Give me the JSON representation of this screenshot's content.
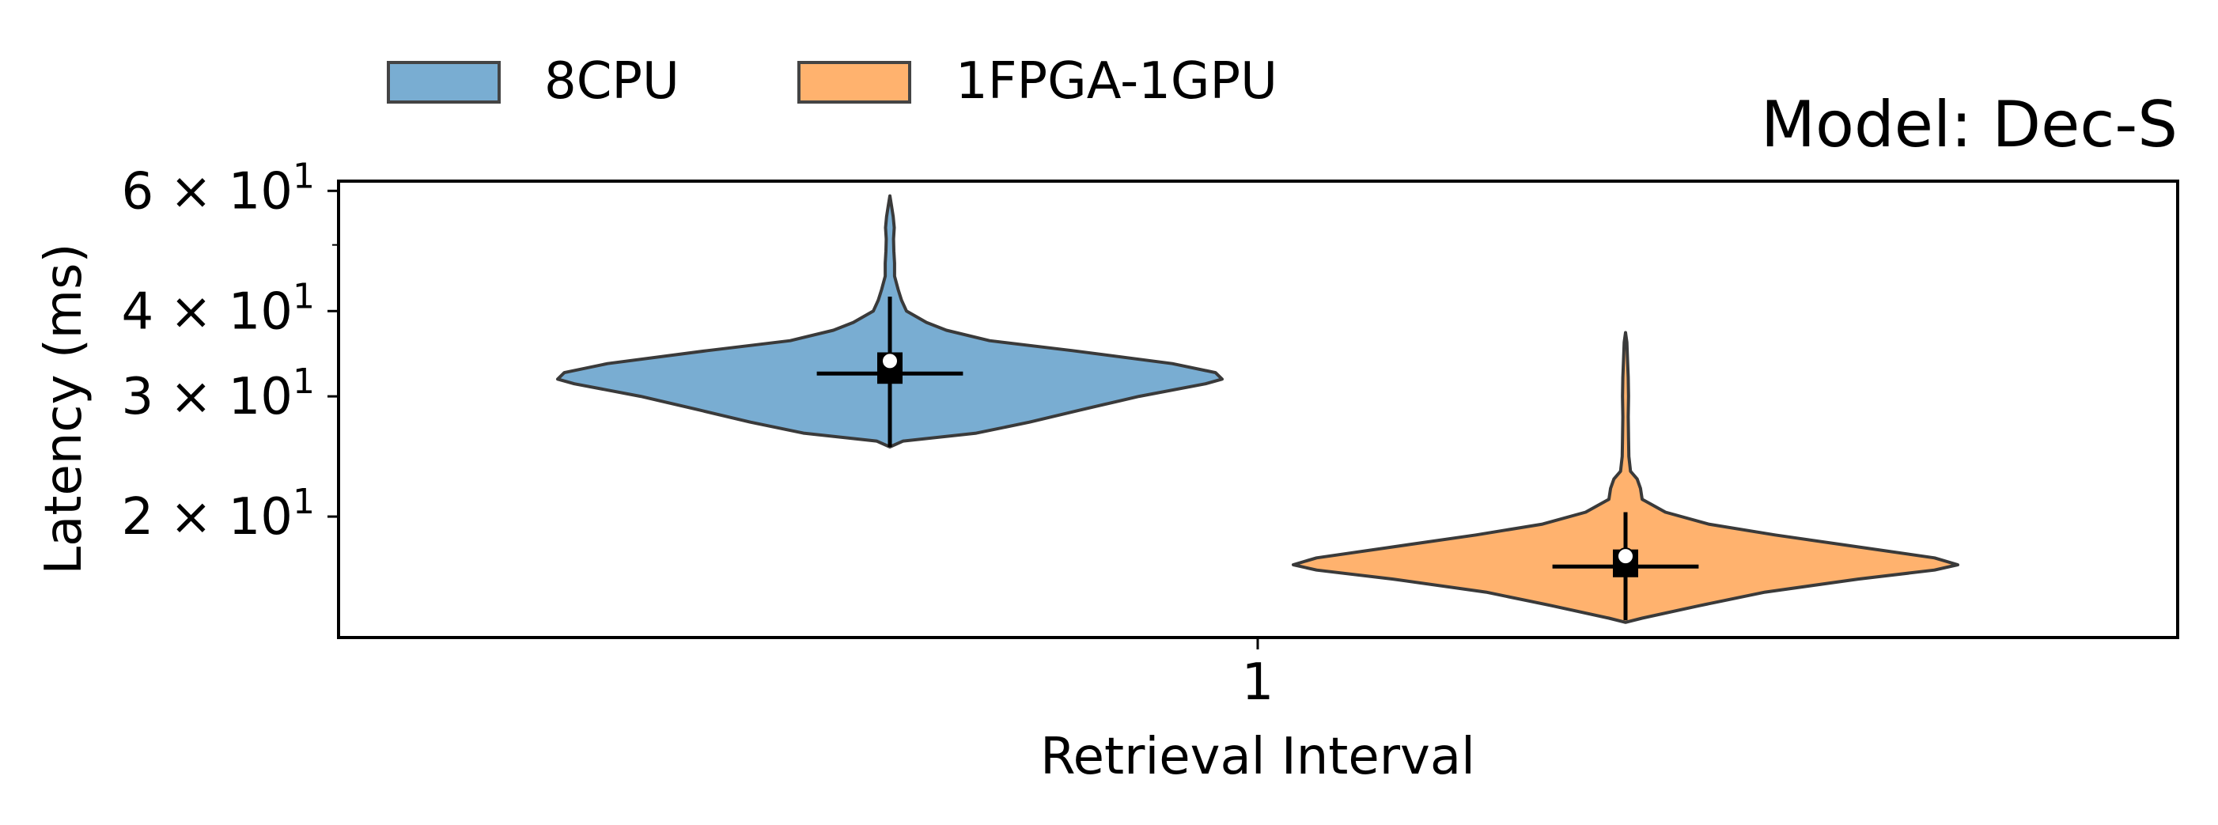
{
  "chart_data": {
    "type": "violin",
    "title": "Model: Dec-S",
    "xlabel": "Retrieval Interval",
    "ylabel": "Latency (ms)",
    "yscale": "log",
    "ylim": [
      13.3,
      62
    ],
    "categories": [
      "1"
    ],
    "yticks": [
      {
        "value": 60,
        "mantissa": "6",
        "base": "10",
        "exp": "1"
      },
      {
        "value": 40,
        "mantissa": "4",
        "base": "10",
        "exp": "1"
      },
      {
        "value": 30,
        "mantissa": "3",
        "base": "10",
        "exp": "1"
      },
      {
        "value": 20,
        "mantissa": "2",
        "base": "10",
        "exp": "1"
      }
    ],
    "yminor_ticks": [
      50
    ],
    "legend": "top-left, outside",
    "grid": false,
    "series": [
      {
        "name": "8CPU",
        "color": "#1f77b4",
        "stats": {
          "min": 25.3,
          "q1": 31.3,
          "median": 32.4,
          "mean": 33.8,
          "q3": 34.8,
          "max": 42.0
        },
        "whisker_halfwidth": 0.33,
        "profile": [
          [
            25.3,
            0.0
          ],
          [
            25.8,
            0.04
          ],
          [
            26.5,
            0.26
          ],
          [
            27.5,
            0.42
          ],
          [
            28.7,
            0.58
          ],
          [
            30.0,
            0.75
          ],
          [
            31.3,
            0.95
          ],
          [
            31.8,
            1.0
          ],
          [
            32.5,
            0.98
          ],
          [
            33.5,
            0.85
          ],
          [
            35.0,
            0.55
          ],
          [
            36.2,
            0.3
          ],
          [
            37.5,
            0.17
          ],
          [
            38.5,
            0.11
          ],
          [
            40.0,
            0.05
          ],
          [
            41.5,
            0.035
          ],
          [
            43.0,
            0.025
          ],
          [
            45.0,
            0.014
          ],
          [
            47.0,
            0.014
          ],
          [
            49.0,
            0.012
          ],
          [
            51.0,
            0.011
          ],
          [
            53.0,
            0.013
          ],
          [
            55.0,
            0.01
          ],
          [
            57.0,
            0.005
          ],
          [
            59.0,
            0.0
          ]
        ]
      },
      {
        "name": "1FPGA-1GPU",
        "color": "#ff7f0e",
        "stats": {
          "min": 14.1,
          "q1": 16.3,
          "median": 16.9,
          "mean": 17.5,
          "q3": 17.9,
          "max": 20.3
        },
        "whisker_halfwidth": 0.33,
        "profile": [
          [
            14.0,
            0.0
          ],
          [
            14.2,
            0.05
          ],
          [
            14.8,
            0.22
          ],
          [
            15.5,
            0.42
          ],
          [
            16.2,
            0.7
          ],
          [
            16.7,
            0.93
          ],
          [
            17.0,
            1.0
          ],
          [
            17.4,
            0.93
          ],
          [
            18.0,
            0.72
          ],
          [
            18.8,
            0.45
          ],
          [
            19.5,
            0.25
          ],
          [
            20.3,
            0.12
          ],
          [
            21.2,
            0.05
          ],
          [
            22.0,
            0.045
          ],
          [
            22.7,
            0.035
          ],
          [
            23.3,
            0.015
          ],
          [
            24.5,
            0.01
          ],
          [
            26.0,
            0.009
          ],
          [
            28.0,
            0.008
          ],
          [
            30.0,
            0.009
          ],
          [
            32.0,
            0.008
          ],
          [
            34.0,
            0.006
          ],
          [
            36.0,
            0.004
          ],
          [
            37.2,
            0.0
          ]
        ]
      }
    ]
  }
}
